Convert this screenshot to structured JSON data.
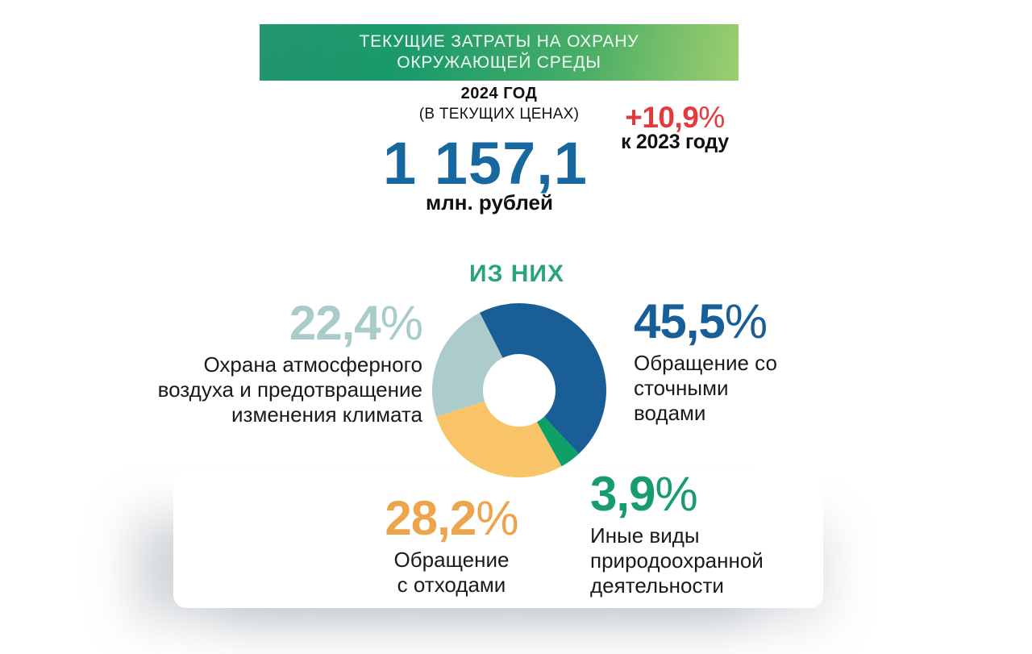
{
  "header_banner": {
    "line1": "ТЕКУЩИЕ ЗАТРАТЫ НА ОХРАНУ",
    "line2": "ОКРУЖАЮЩЕЙ СРЕДЫ",
    "gradient": [
      "#0E9166",
      "#2BA36C",
      "#8FC75E"
    ],
    "text_color": "#FFFFFF"
  },
  "subheader": {
    "year": "2024 ГОД",
    "note": "(В ТЕКУЩИХ ЦЕНАХ)"
  },
  "change_badge": {
    "number": "+10,9",
    "sign": "%",
    "caption": "к 2023 году",
    "value_color": "#E23B3D"
  },
  "total": {
    "value": "1 157,1",
    "unit": "млн. рублей",
    "value_color": "#17689F"
  },
  "section_title": {
    "text": "ИЗ НИХ",
    "color": "#2BA578"
  },
  "chart_data": {
    "type": "pie",
    "donut": true,
    "title": "ИЗ НИХ",
    "unit": "%",
    "start_angle_deg": -27,
    "direction": "clockwise",
    "outer_radius": 108,
    "inner_radius": 45,
    "segments": [
      {
        "id": "water",
        "label": "Обращение со сточными водами",
        "value": 45.5,
        "display": "45,5%",
        "color": "#1A5E97"
      },
      {
        "id": "other",
        "label": "Иные виды природоохранной деятельности",
        "value": 3.9,
        "display": "3,9%",
        "color": "#0FA067"
      },
      {
        "id": "waste",
        "label": "Обращение с отходами",
        "value": 28.2,
        "display": "28,2%",
        "color": "#F9C468"
      },
      {
        "id": "air",
        "label": "Охрана атмосферного воздуха и предотвращение изменения климата",
        "value": 22.4,
        "display": "22,4%",
        "color": "#ABCCCA"
      }
    ]
  },
  "callouts": {
    "air": {
      "number": "22,4",
      "sign": "%",
      "color": "#A9CBC9",
      "text": "Охрана атмосферного\nвоздуха и предотвращение\nизменения климата"
    },
    "water": {
      "number": "45,5",
      "sign": "%",
      "color": "#1A5E97",
      "text": "Обращение со\nсточными\nводами"
    },
    "waste": {
      "number": "28,2",
      "sign": "%",
      "color": "#ECA54D",
      "text": "Обращение\nс отходами"
    },
    "other": {
      "number": "3,9",
      "sign": "%",
      "color": "#189A73",
      "text": "Иные виды\nприродоохранной\nдеятельности"
    }
  }
}
